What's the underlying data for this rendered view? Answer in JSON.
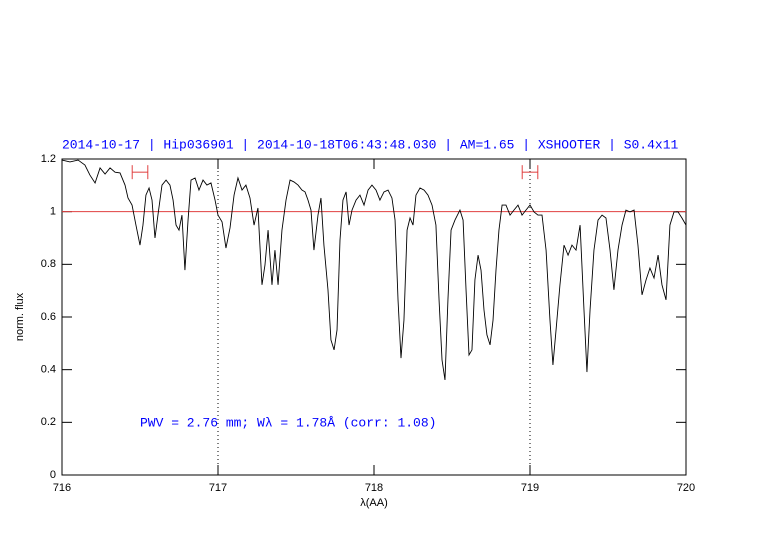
{
  "chart_data": {
    "type": "line",
    "title": "2014-10-17 | Hip036901 | 2014-10-18T06:43:48.030 | AM=1.65 | XSHOOTER | S0.4x11",
    "annotation": "PWV = 2.76 mm; Wλ = 1.78Å (corr: 1.08)",
    "xlabel": "λ(AA)",
    "ylabel": "norm. flux",
    "xlim": [
      716,
      720
    ],
    "ylim": [
      0,
      1.2
    ],
    "xticks": [
      716,
      717,
      718,
      719,
      720
    ],
    "yticks": [
      0,
      0.2,
      0.4,
      0.6,
      0.8,
      1,
      1.2
    ],
    "reference_line": {
      "value": 1,
      "color": "#e04040"
    },
    "vlines": [
      717,
      719
    ],
    "error_bars": [
      {
        "x": 716.5,
        "y": 1.15,
        "xerr": 0.05,
        "color": "#e04040"
      },
      {
        "x": 719,
        "y": 1.15,
        "xerr": 0.05,
        "color": "#e04040"
      }
    ],
    "x": [
      716.0,
      716.051,
      716.103,
      716.147,
      716.179,
      716.212,
      716.244,
      716.276,
      716.308,
      716.34,
      716.372,
      716.404,
      716.423,
      716.449,
      716.474,
      716.5,
      716.519,
      716.538,
      716.558,
      716.577,
      716.596,
      716.615,
      716.641,
      716.667,
      716.692,
      716.712,
      716.731,
      716.75,
      716.769,
      716.788,
      716.808,
      716.827,
      716.853,
      716.878,
      716.904,
      716.929,
      716.955,
      716.981,
      717.0,
      717.026,
      717.051,
      717.077,
      717.103,
      717.128,
      717.154,
      717.179,
      717.205,
      717.231,
      717.256,
      717.282,
      717.301,
      717.321,
      717.346,
      717.365,
      717.385,
      717.41,
      717.436,
      717.462,
      717.487,
      717.513,
      717.538,
      717.558,
      717.577,
      717.596,
      717.615,
      717.641,
      717.66,
      717.679,
      717.705,
      717.724,
      717.744,
      717.763,
      717.782,
      717.801,
      717.821,
      717.84,
      717.859,
      717.885,
      717.91,
      717.936,
      717.962,
      717.987,
      718.013,
      718.038,
      718.064,
      718.09,
      718.115,
      718.135,
      718.154,
      718.173,
      718.192,
      718.212,
      718.231,
      718.25,
      718.269,
      718.295,
      718.321,
      718.346,
      718.372,
      718.397,
      718.417,
      718.436,
      718.455,
      718.474,
      718.494,
      718.519,
      718.551,
      718.571,
      718.59,
      718.609,
      718.628,
      718.647,
      718.667,
      718.686,
      718.705,
      718.724,
      718.744,
      718.763,
      718.782,
      718.801,
      718.821,
      718.846,
      718.872,
      718.897,
      718.923,
      718.949,
      718.974,
      719.0,
      719.026,
      719.051,
      719.077,
      719.103,
      719.128,
      719.147,
      719.167,
      719.192,
      719.218,
      719.244,
      719.269,
      719.295,
      719.321,
      719.346,
      719.365,
      719.385,
      719.41,
      719.436,
      719.462,
      719.487,
      719.513,
      719.538,
      719.564,
      719.59,
      719.615,
      719.641,
      719.667,
      719.692,
      719.718,
      719.744,
      719.769,
      719.795,
      719.821,
      719.846,
      719.872,
      719.897,
      719.923,
      719.949,
      719.974,
      720.0
    ],
    "series": [
      {
        "color": "#000000",
        "values": [
          1.196,
          1.189,
          1.196,
          1.177,
          1.139,
          1.109,
          1.166,
          1.143,
          1.166,
          1.15,
          1.147,
          1.101,
          1.052,
          1.025,
          0.949,
          0.873,
          0.949,
          1.063,
          1.09,
          1.044,
          0.9,
          0.987,
          1.101,
          1.12,
          1.101,
          1.044,
          0.949,
          0.93,
          0.987,
          0.778,
          0.968,
          1.12,
          1.128,
          1.082,
          1.12,
          1.101,
          1.109,
          1.044,
          0.987,
          0.961,
          0.862,
          0.938,
          1.063,
          1.128,
          1.082,
          1.101,
          1.052,
          0.949,
          1.014,
          0.722,
          0.797,
          0.93,
          0.722,
          0.854,
          0.722,
          0.93,
          1.044,
          1.12,
          1.113,
          1.101,
          1.082,
          1.075,
          1.044,
          1.006,
          0.854,
          0.987,
          1.052,
          0.873,
          0.703,
          0.513,
          0.475,
          0.551,
          0.892,
          1.044,
          1.075,
          0.949,
          1.006,
          1.044,
          1.063,
          1.025,
          1.082,
          1.101,
          1.082,
          1.044,
          1.075,
          1.082,
          1.052,
          0.968,
          0.665,
          0.444,
          0.588,
          0.93,
          0.976,
          0.949,
          1.063,
          1.09,
          1.082,
          1.063,
          1.025,
          0.949,
          0.665,
          0.437,
          0.361,
          0.665,
          0.93,
          0.968,
          1.006,
          0.968,
          0.703,
          0.456,
          0.475,
          0.741,
          0.835,
          0.778,
          0.627,
          0.532,
          0.494,
          0.588,
          0.778,
          0.93,
          1.025,
          1.025,
          0.987,
          1.006,
          1.025,
          0.987,
          1.006,
          1.025,
          0.999,
          0.987,
          0.987,
          0.854,
          0.588,
          0.418,
          0.551,
          0.722,
          0.873,
          0.835,
          0.873,
          0.854,
          0.949,
          0.627,
          0.391,
          0.627,
          0.854,
          0.968,
          0.987,
          0.976,
          0.854,
          0.703,
          0.854,
          0.949,
          1.006,
          0.999,
          1.006,
          0.873,
          0.684,
          0.741,
          0.786,
          0.748,
          0.835,
          0.722,
          0.665,
          0.949,
          0.999,
          0.999,
          0.976,
          0.949
        ]
      }
    ]
  }
}
